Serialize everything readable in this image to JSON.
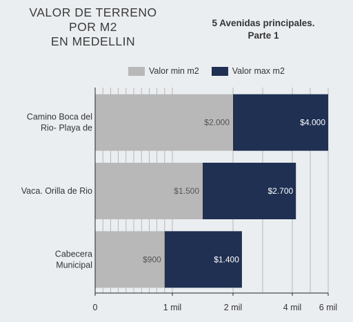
{
  "title_lines": [
    "VALOR DE TERRENO",
    "POR M2",
    "EN MEDELLIN"
  ],
  "subtitle_lines": [
    "5 Avenidas principales.",
    "Parte 1"
  ],
  "colors": {
    "min": "#b8b8b8",
    "max": "#1f3052"
  },
  "chart_data": {
    "type": "bar",
    "orientation": "horizontal",
    "stacked": true,
    "x_scale": "log",
    "categories": [
      [
        "Camino Boca del",
        "Rio- Playa de"
      ],
      [
        "Vaca. Orilla de Rio"
      ],
      [
        "Cabecera",
        "Municipal"
      ]
    ],
    "series": [
      {
        "name": "Valor min m2",
        "values": [
          2000,
          1500,
          900
        ],
        "labels": [
          "$2.000",
          "$1.500",
          "$900"
        ]
      },
      {
        "name": "Valor max m2",
        "values": [
          4000,
          2700,
          1400
        ],
        "labels": [
          "$4.000",
          "$2.700",
          "$1.400"
        ]
      }
    ],
    "x_ticks": [
      {
        "label": "0"
      },
      {
        "label": "1 mil"
      },
      {
        "label": "2 mil"
      },
      {
        "label": "4 mil"
      },
      {
        "label": "6 mil"
      }
    ],
    "legend_position": "top",
    "grid": true
  }
}
